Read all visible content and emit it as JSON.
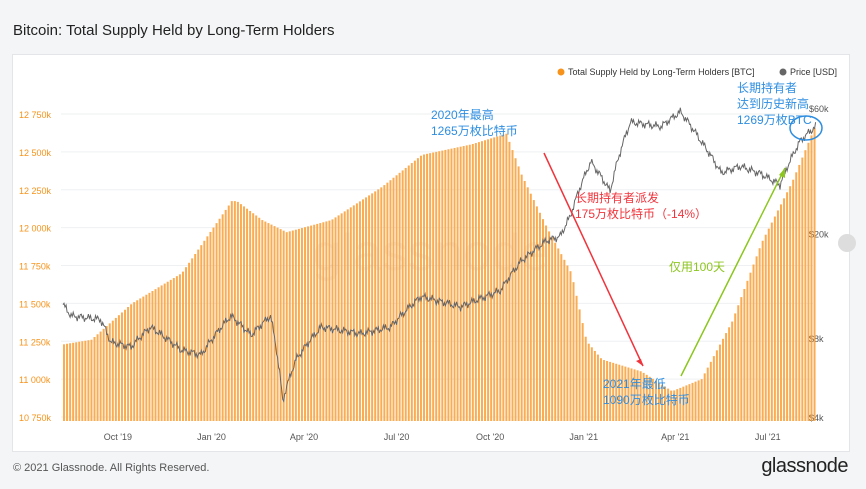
{
  "title": "Bitcoin: Total Supply Held by Long-Term Holders",
  "footer": "© 2021 Glassnode. All Rights Reserved.",
  "brand": "glassnode",
  "watermark": "glassnode",
  "chart_data": {
    "type": "bar",
    "title": "Bitcoin: Total Supply Held by Long-Term Holders",
    "start_date": "2019-08-08",
    "legend": [
      {
        "name": "Total Supply Held by Long-Term Holders [BTC]",
        "color": "#f7931a"
      },
      {
        "name": "Price [USD]",
        "color": "#666666"
      }
    ],
    "legend_position": "top-right",
    "x_ticks": [
      {
        "label": "Oct '19",
        "day": 54
      },
      {
        "label": "Jan '20",
        "day": 146
      },
      {
        "label": "Apr '20",
        "day": 237
      },
      {
        "label": "Jul '20",
        "day": 328
      },
      {
        "label": "Oct '20",
        "day": 420
      },
      {
        "label": "Jan '21",
        "day": 512
      },
      {
        "label": "Apr '21",
        "day": 602
      },
      {
        "label": "Jul '21",
        "day": 693
      }
    ],
    "y_left": {
      "ylim": [
        10750,
        12750
      ],
      "ticks": [
        "10 750k",
        "11 000k",
        "11 250k",
        "11 500k",
        "11 750k",
        "12 000k",
        "12 250k",
        "12 500k",
        "12 750k"
      ]
    },
    "y_right": {
      "scale": "log",
      "ylim": [
        4000,
        60000
      ],
      "ticks": [
        {
          "label": "$4k",
          "v": 4000
        },
        {
          "label": "$8k",
          "v": 8000
        },
        {
          "label": "$20k",
          "v": 20000
        },
        {
          "label": "$60k",
          "v": 60000
        }
      ]
    },
    "series": [
      {
        "name": "Total Supply Held by Long-Term Holders [BTC]",
        "unit": "thousand BTC",
        "points": [
          [
            0,
            11230
          ],
          [
            27,
            11260
          ],
          [
            67,
            11500
          ],
          [
            116,
            11700
          ],
          [
            165,
            12175
          ],
          [
            170,
            12175
          ],
          [
            195,
            12050
          ],
          [
            219,
            11970
          ],
          [
            263,
            12050
          ],
          [
            313,
            12270
          ],
          [
            352,
            12480
          ],
          [
            401,
            12550
          ],
          [
            435,
            12620
          ],
          [
            450,
            12350
          ],
          [
            475,
            12000
          ],
          [
            499,
            11700
          ],
          [
            514,
            11250
          ],
          [
            529,
            11130
          ],
          [
            568,
            11050
          ],
          [
            598,
            10920
          ],
          [
            627,
            11000
          ],
          [
            657,
            11380
          ],
          [
            686,
            11900
          ],
          [
            716,
            12300
          ],
          [
            740,
            12690
          ]
        ]
      },
      {
        "name": "Price [USD]",
        "points": [
          [
            0,
            10700
          ],
          [
            8,
            9700
          ],
          [
            37,
            9400
          ],
          [
            47,
            7700
          ],
          [
            67,
            7400
          ],
          [
            86,
            8800
          ],
          [
            116,
            7200
          ],
          [
            136,
            6900
          ],
          [
            165,
            9700
          ],
          [
            185,
            8200
          ],
          [
            204,
            9700
          ],
          [
            216,
            4600
          ],
          [
            229,
            6600
          ],
          [
            254,
            8800
          ],
          [
            293,
            8300
          ],
          [
            322,
            8800
          ],
          [
            352,
            11500
          ],
          [
            391,
            10500
          ],
          [
            430,
            12100
          ],
          [
            450,
            15600
          ],
          [
            475,
            18700
          ],
          [
            489,
            19500
          ],
          [
            499,
            23300
          ],
          [
            519,
            37400
          ],
          [
            538,
            28900
          ],
          [
            558,
            53000
          ],
          [
            588,
            51000
          ],
          [
            607,
            58000
          ],
          [
            627,
            45000
          ],
          [
            647,
            34000
          ],
          [
            666,
            36000
          ],
          [
            686,
            33700
          ],
          [
            705,
            30600
          ],
          [
            725,
            45000
          ],
          [
            740,
            51000
          ]
        ]
      }
    ],
    "annotations": [
      {
        "lines": [
          "2020年最高",
          "1265万枚比特币"
        ],
        "color": "#2e8ee0"
      },
      {
        "lines": [
          "长期持有者派发",
          "175万枚比特币（-14%）"
        ],
        "color": "#f0343c"
      },
      {
        "lines": [
          "2021年最低",
          "1090万枚比特币"
        ],
        "color": "#2e8ee0"
      },
      {
        "lines": [
          "仅用100天"
        ],
        "color": "#8cc61e"
      },
      {
        "lines": [
          "长期持有者",
          "达到历史新高",
          "1269万枚BTC"
        ],
        "color": "#2e8ee0"
      }
    ]
  }
}
